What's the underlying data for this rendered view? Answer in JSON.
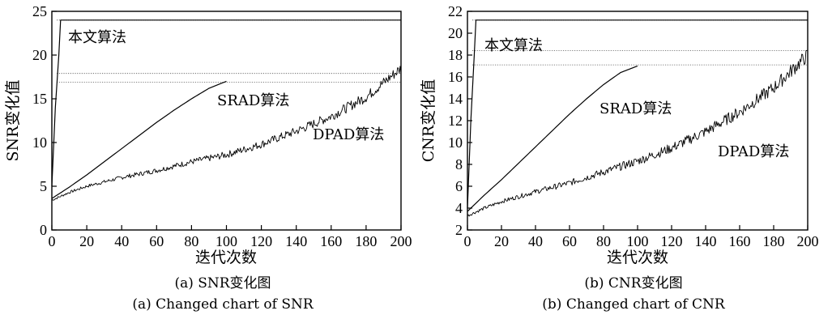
{
  "chart_data": [
    {
      "type": "line",
      "xlabel": "迭代次数",
      "ylabel": "SNR变化值",
      "xlim": [
        0,
        200
      ],
      "ylim": [
        0,
        25
      ],
      "xticks": [
        "0",
        "20",
        "40",
        "60",
        "80",
        "100",
        "120",
        "140",
        "160",
        "180",
        "200"
      ],
      "yticks": [
        "0",
        "5",
        "10",
        "15",
        "20",
        "25"
      ],
      "caption_cn": "(a)  SNR变化图",
      "caption_en": "(a)  Changed chart of SNR",
      "series": [
        {
          "name": "本文算法",
          "style": "rising-then-flat",
          "points": [
            [
              0,
              5.0
            ],
            [
              2,
              14
            ],
            [
              4,
              20
            ],
            [
              5,
              24.0
            ],
            [
              100,
              24.0
            ],
            [
              200,
              24.0
            ]
          ]
        },
        {
          "name": "SRAD算法",
          "points": [
            [
              0,
              3.6
            ],
            [
              10,
              4.9
            ],
            [
              20,
              6.3
            ],
            [
              30,
              7.8
            ],
            [
              40,
              9.3
            ],
            [
              50,
              10.8
            ],
            [
              60,
              12.3
            ],
            [
              70,
              13.7
            ],
            [
              80,
              15.0
            ],
            [
              90,
              16.2
            ],
            [
              100,
              17.0
            ]
          ]
        },
        {
          "name": "DPAD算法",
          "noisy": true,
          "points": [
            [
              0,
              3.4
            ],
            [
              10,
              4.3
            ],
            [
              20,
              5.0
            ],
            [
              40,
              6.0
            ],
            [
              60,
              6.8
            ],
            [
              80,
              7.8
            ],
            [
              100,
              8.6
            ],
            [
              120,
              9.8
            ],
            [
              140,
              11.3
            ],
            [
              160,
              13.0
            ],
            [
              180,
              15.2
            ],
            [
              200,
              18.5
            ]
          ]
        }
      ],
      "reference_lines": [
        24.0,
        17.9,
        16.9
      ]
    },
    {
      "type": "line",
      "xlabel": "迭代次数",
      "ylabel": "CNR变化值",
      "xlim": [
        0,
        200
      ],
      "ylim": [
        2,
        22
      ],
      "xticks": [
        "0",
        "20",
        "40",
        "60",
        "80",
        "100",
        "120",
        "140",
        "160",
        "180",
        "200"
      ],
      "yticks": [
        "2",
        "4",
        "6",
        "8",
        "10",
        "12",
        "14",
        "16",
        "18",
        "20",
        "22"
      ],
      "caption_cn": "(b)  CNR变化图",
      "caption_en": "(b)  Changed chart of CNR",
      "series": [
        {
          "name": "本文算法",
          "style": "rising-then-flat",
          "points": [
            [
              0,
              4.0
            ],
            [
              2,
              12
            ],
            [
              4,
              18
            ],
            [
              5,
              21.2
            ],
            [
              100,
              21.2
            ],
            [
              200,
              21.2
            ]
          ]
        },
        {
          "name": "SRAD算法",
          "points": [
            [
              0,
              3.7
            ],
            [
              10,
              5.2
            ],
            [
              20,
              6.6
            ],
            [
              30,
              8.1
            ],
            [
              40,
              9.6
            ],
            [
              50,
              11.1
            ],
            [
              60,
              12.6
            ],
            [
              70,
              14.0
            ],
            [
              80,
              15.3
            ],
            [
              90,
              16.4
            ],
            [
              100,
              17.0
            ]
          ]
        },
        {
          "name": "DPAD算法",
          "noisy": true,
          "points": [
            [
              0,
              3.3
            ],
            [
              10,
              4.0
            ],
            [
              20,
              4.6
            ],
            [
              40,
              5.5
            ],
            [
              60,
              6.3
            ],
            [
              80,
              7.3
            ],
            [
              100,
              8.3
            ],
            [
              120,
              9.5
            ],
            [
              140,
              11.0
            ],
            [
              160,
              12.8
            ],
            [
              180,
              15.0
            ],
            [
              200,
              18.0
            ]
          ]
        }
      ],
      "reference_lines": [
        21.2,
        18.4,
        17.1
      ]
    }
  ]
}
